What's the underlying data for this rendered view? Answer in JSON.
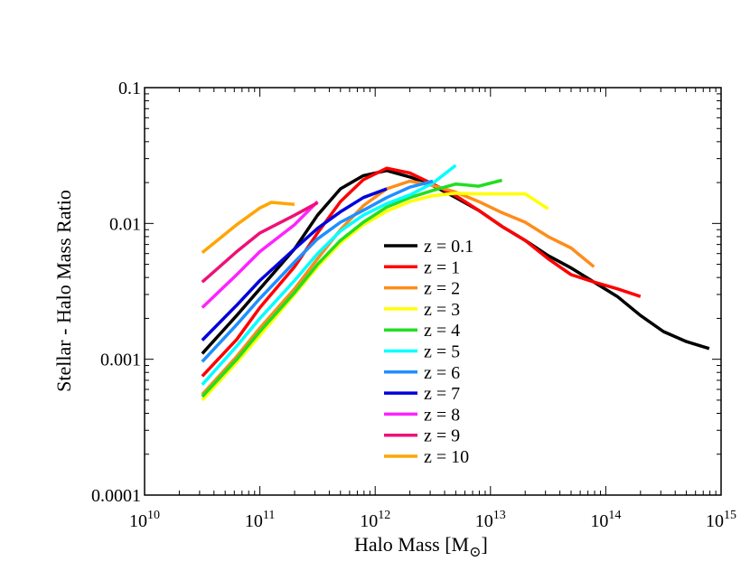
{
  "chart_data": {
    "type": "line",
    "xscale": "log",
    "yscale": "log",
    "xlabel": "Halo Mass [M",
    "xlabel_subscript": "⊙",
    "xlabel_close": "]",
    "ylabel": "Stellar - Halo Mass Ratio",
    "xlim": [
      10000000000.0,
      1000000000000000.0
    ],
    "ylim": [
      0.0001,
      0.1
    ],
    "x_tick_labels": [
      {
        "base": "10",
        "exp": "10"
      },
      {
        "base": "10",
        "exp": "11"
      },
      {
        "base": "10",
        "exp": "12"
      },
      {
        "base": "10",
        "exp": "13"
      },
      {
        "base": "10",
        "exp": "14"
      },
      {
        "base": "10",
        "exp": "15"
      }
    ],
    "y_tick_labels": [
      "0.0001",
      "0.001",
      "0.01",
      "0.1"
    ],
    "grid": false,
    "legend_placement": "center",
    "series": [
      {
        "name": "z = 0.1",
        "color": "#000000",
        "x": [
          31600000000.0,
          63000000000.0,
          100000000000.0,
          200000000000.0,
          316000000000.0,
          500000000000.0,
          790000000000.0,
          1260000000000.0,
          2000000000000.0,
          3160000000000.0,
          5000000000000.0,
          7900000000000.0,
          12600000000000.0,
          20000000000000.0,
          31600000000000.0,
          50000000000000.0,
          79000000000000.0,
          126000000000000.0,
          200000000000000.0,
          316000000000000.0,
          500000000000000.0,
          790000000000000.0
        ],
        "y": [
          0.0011,
          0.0021,
          0.0033,
          0.0065,
          0.0115,
          0.018,
          0.0225,
          0.0245,
          0.022,
          0.019,
          0.0155,
          0.0125,
          0.0095,
          0.0075,
          0.0058,
          0.0047,
          0.0037,
          0.0029,
          0.0021,
          0.0016,
          0.00135,
          0.0012
        ]
      },
      {
        "name": "z = 1",
        "color": "#ff0000",
        "x": [
          31600000000.0,
          63000000000.0,
          100000000000.0,
          200000000000.0,
          316000000000.0,
          500000000000.0,
          790000000000.0,
          1260000000000.0,
          2000000000000.0,
          3160000000000.0,
          5000000000000.0,
          7900000000000.0,
          12600000000000.0,
          20000000000000.0,
          31600000000000.0,
          50000000000000.0,
          79000000000000.0,
          126000000000000.0,
          200000000000000.0
        ],
        "y": [
          0.00075,
          0.0014,
          0.0024,
          0.0048,
          0.0085,
          0.0145,
          0.021,
          0.0255,
          0.0235,
          0.0195,
          0.016,
          0.0125,
          0.0095,
          0.0075,
          0.0055,
          0.0042,
          0.0037,
          0.0033,
          0.0029
        ]
      },
      {
        "name": "z = 2",
        "color": "#ff8c1a",
        "x": [
          31600000000.0,
          63000000000.0,
          100000000000.0,
          200000000000.0,
          316000000000.0,
          500000000000.0,
          790000000000.0,
          1260000000000.0,
          2000000000000.0,
          3160000000000.0,
          5000000000000.0,
          7900000000000.0,
          12600000000000.0,
          20000000000000.0,
          31600000000000.0,
          50000000000000.0,
          79000000000000.0
        ],
        "y": [
          0.00055,
          0.00105,
          0.0017,
          0.0033,
          0.0055,
          0.009,
          0.0135,
          0.018,
          0.0205,
          0.019,
          0.017,
          0.0145,
          0.012,
          0.0102,
          0.008,
          0.0066,
          0.0048
        ]
      },
      {
        "name": "z = 3",
        "color": "#ffff00",
        "x": [
          31600000000.0,
          63000000000.0,
          100000000000.0,
          200000000000.0,
          316000000000.0,
          500000000000.0,
          790000000000.0,
          1260000000000.0,
          2000000000000.0,
          3160000000000.0,
          5000000000000.0,
          7900000000000.0,
          12600000000000.0,
          20000000000000.0,
          31600000000000.0
        ],
        "y": [
          0.0005,
          0.00095,
          0.0015,
          0.003,
          0.0048,
          0.0072,
          0.0098,
          0.0123,
          0.0145,
          0.016,
          0.0167,
          0.0165,
          0.0165,
          0.0165,
          0.0128
        ]
      },
      {
        "name": "z = 4",
        "color": "#22dd22",
        "x": [
          31600000000.0,
          63000000000.0,
          100000000000.0,
          200000000000.0,
          316000000000.0,
          500000000000.0,
          790000000000.0,
          1260000000000.0,
          2000000000000.0,
          3160000000000.0,
          5000000000000.0,
          7900000000000.0,
          12600000000000.0
        ],
        "y": [
          0.00053,
          0.001,
          0.0016,
          0.0031,
          0.005,
          0.0075,
          0.0102,
          0.0132,
          0.0155,
          0.0175,
          0.0195,
          0.0188,
          0.0208
        ]
      },
      {
        "name": "z = 5",
        "color": "#00ffff",
        "x": [
          31600000000.0,
          63000000000.0,
          100000000000.0,
          200000000000.0,
          316000000000.0,
          500000000000.0,
          790000000000.0,
          1260000000000.0,
          2000000000000.0,
          3160000000000.0,
          5000000000000.0
        ],
        "y": [
          0.00065,
          0.00125,
          0.002,
          0.0038,
          0.006,
          0.0088,
          0.0115,
          0.014,
          0.0162,
          0.0198,
          0.0268
        ]
      },
      {
        "name": "z = 6",
        "color": "#1f8fff",
        "x": [
          31600000000.0,
          63000000000.0,
          100000000000.0,
          200000000000.0,
          316000000000.0,
          500000000000.0,
          790000000000.0,
          1260000000000.0,
          2000000000000.0,
          3160000000000.0
        ],
        "y": [
          0.00096,
          0.0018,
          0.0028,
          0.0052,
          0.0077,
          0.0102,
          0.0125,
          0.0155,
          0.0185,
          0.0205
        ]
      },
      {
        "name": "z = 7",
        "color": "#0000dd",
        "x": [
          31600000000.0,
          63000000000.0,
          100000000000.0,
          200000000000.0,
          316000000000.0,
          500000000000.0,
          790000000000.0,
          1260000000000.0
        ],
        "y": [
          0.00138,
          0.0025,
          0.0038,
          0.0065,
          0.0092,
          0.0122,
          0.0155,
          0.018
        ]
      },
      {
        "name": "z = 8",
        "color": "#ff22ff",
        "x": [
          31600000000.0,
          63000000000.0,
          100000000000.0,
          200000000000.0,
          316000000000.0
        ],
        "y": [
          0.0024,
          0.0042,
          0.0062,
          0.0098,
          0.0145
        ]
      },
      {
        "name": "z = 9",
        "color": "#ee1177",
        "x": [
          31600000000.0,
          63000000000.0,
          100000000000.0,
          200000000000.0,
          316000000000.0
        ],
        "y": [
          0.0037,
          0.0062,
          0.0085,
          0.0115,
          0.0142
        ]
      },
      {
        "name": "z = 10",
        "color": "#ffa500",
        "x": [
          31600000000.0,
          63000000000.0,
          100000000000.0,
          126000000000.0,
          200000000000.0
        ],
        "y": [
          0.0061,
          0.0098,
          0.013,
          0.0143,
          0.0138
        ]
      }
    ]
  }
}
